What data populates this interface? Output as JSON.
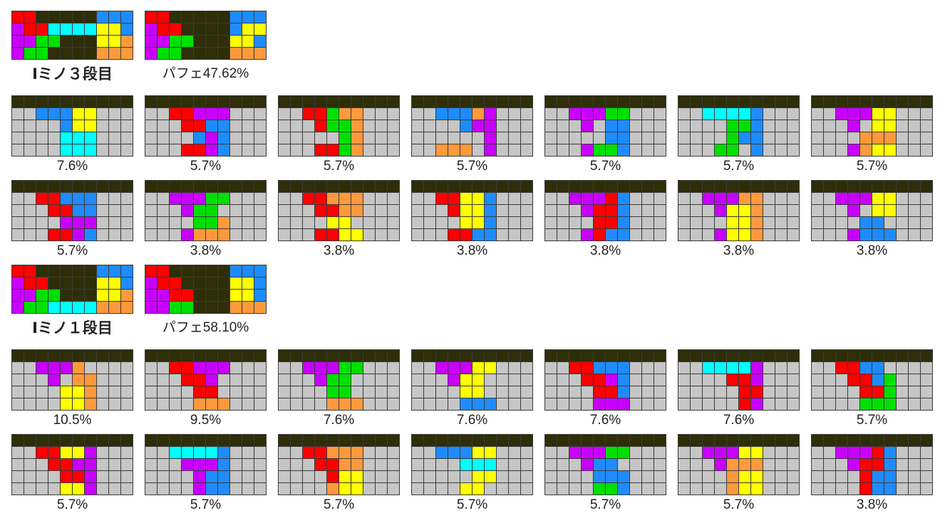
{
  "colors": {
    "D": "#2e2e08",
    "G": "#c6c6c6",
    "R": "#ff0000",
    "P": "#c800ff",
    "B": "#1e8cff",
    "Y": "#ffff00",
    "C": "#00ffff",
    "N": "#00e000",
    "O": "#ff9a3c",
    "grid": "#3a3a3a"
  },
  "sections": [
    {
      "title": "Iミノ３段目",
      "perfect": "パフェ47.62%",
      "mains": [
        [
          "RRDDDDDBBB",
          "PRRCCCCYYB",
          "PPNNDDDYYO",
          "PNNDDDDOOO"
        ],
        [
          "RRDDDDDBBB",
          "PRRDDDDBYY",
          "PPNNDDDYYB",
          "PNNDDDDOOO"
        ]
      ],
      "rows": [
        [
          {
            "label": "7.6%",
            "grid": [
              "DDDDDDDDDD",
              "GGBBBYYGGG",
              "GGGGBYYGGG",
              "GGGGCCCGGG",
              "GGGGCCCGGG"
            ]
          },
          {
            "label": "5.7%",
            "grid": [
              "DDDDDDDDDD",
              "GGRRPPPGGG",
              "GGGRRBBGGG",
              "GGGGBPBGGG",
              "GGGRRPBGGG"
            ]
          },
          {
            "label": "5.7%",
            "grid": [
              "DDDDDDDDDD",
              "GGRRNOOGGG",
              "GGGRNNOGGG",
              "GGGGGNOGGG",
              "GGGRRNOGGG"
            ]
          },
          {
            "label": "5.7%",
            "grid": [
              "DDDDDDDDDD",
              "GGBBBOPGGG",
              "GGGGBPPGGG",
              "GGGGGGPGGG",
              "GGOOOGPGGG"
            ]
          },
          {
            "label": "5.7%",
            "grid": [
              "DDDDDDDDDD",
              "GGPPPNNGGG",
              "GGGPGBBGGG",
              "GGGGGBBGGG",
              "GGGPNNBGGG"
            ]
          },
          {
            "label": "5.7%",
            "grid": [
              "DDDDDDDDDD",
              "GGCCCCBGGG",
              "GGGGNNBGGG",
              "GGGGNBBGGG",
              "GGGNNGBGGG"
            ]
          },
          {
            "label": "5.7%",
            "grid": [
              "DDDDDDDDDD",
              "GGPPPYYGGG",
              "GGGPGYYGGG",
              "GGGGOOOGGG",
              "GGGPOYYGGG"
            ]
          }
        ],
        [
          {
            "label": "5.7%",
            "grid": [
              "DDDDDDDDDD",
              "GGRRBBBGGG",
              "GGGRRBBGGG",
              "GGGGPPPGGG",
              "GGGRRPBGGG"
            ]
          },
          {
            "label": "3.8%",
            "grid": [
              "DDDDDDDDDD",
              "GGPPPNNGGG",
              "GGGPNNGGGG",
              "GGGGNNOGGG",
              "GGGPOOOGGG"
            ]
          },
          {
            "label": "3.8%",
            "grid": [
              "DDDDDDDDDD",
              "GGRROOOGGG",
              "GGGRROOGGG",
              "GGGGYYGGGG",
              "GGGRRYYGGG"
            ]
          },
          {
            "label": "3.8%",
            "grid": [
              "DDDDDDDDDD",
              "GGRRYYBGGG",
              "GGGRYYBGGG",
              "GGGGYYBGGG",
              "GGGRRBBGGG"
            ]
          },
          {
            "label": "3.8%",
            "grid": [
              "DDDDDDDDDD",
              "GGPPPRBGGG",
              "GGGPRRBGGG",
              "GGGGRRBGGG",
              "GGGPRBBGGG"
            ]
          },
          {
            "label": "3.8%",
            "grid": [
              "DDDDDDDDDD",
              "GGPPPOOGGG",
              "GGGPYYOGGG",
              "GGGGYYOGGG",
              "GGGPYYOGGG"
            ]
          },
          {
            "label": "3.8%",
            "grid": [
              "DDDDDDDDDD",
              "GGPPPYYGGG",
              "GGGPGYYGGG",
              "GGGGBBGGGG",
              "GGGPBBBGGG"
            ]
          }
        ]
      ]
    },
    {
      "title": "Iミノ１段目",
      "perfect": "パフェ58.10%",
      "mains": [
        [
          "RRDDDDDBBB",
          "PRRDDDDYYB",
          "PPNNDDDYYO",
          "PNNCCCCOOO"
        ],
        [
          "RRDDDDDBBB",
          "PRRDDDDYYB",
          "PPRRDDDYYB",
          "PPNNDDDOOO"
        ]
      ],
      "rows": [
        [
          {
            "label": "10.5%",
            "grid": [
              "DDDDDDDDDD",
              "GGPPPOGGGG",
              "GGGPGOOGGG",
              "GGGGYYOGGG",
              "GGGGYYOGGG"
            ]
          },
          {
            "label": "9.5%",
            "grid": [
              "DDDDDDDDDD",
              "GGRRPPPGGG",
              "GGGRRPGGGG",
              "GGGGRRGGGG",
              "GGGGOOOGGG"
            ]
          },
          {
            "label": "7.6%",
            "grid": [
              "DDDDDDDDDD",
              "GGPPPNNGGG",
              "GGGPNNGGGG",
              "GGGGNNGGGG",
              "GGGGOOOGGG"
            ]
          },
          {
            "label": "7.6%",
            "grid": [
              "DDDDDDDDDD",
              "GGPPPYYGGG",
              "GGGPYYGGGG",
              "GGGGYYGGGG",
              "GGGGBBBGGG"
            ]
          },
          {
            "label": "7.6%",
            "grid": [
              "DDDDDDDDDD",
              "GGRRBBBGGG",
              "GGGRRPBGGG",
              "GGGGRRBGGG",
              "GGGGPPPGGG"
            ]
          },
          {
            "label": "7.6%",
            "grid": [
              "DDDDDDDDDD",
              "GGCCCCPGGG",
              "GGGGRRPGGG",
              "GGGGGRRGGG",
              "GGGGGRPGGG"
            ]
          },
          {
            "label": "5.7%",
            "grid": [
              "DDDDDDDDDD",
              "GGRRBBGGGG",
              "GGGRRBNGGG",
              "GGGGRRNGGG",
              "GGGGNNNGGG"
            ]
          }
        ],
        [
          {
            "label": "5.7%",
            "grid": [
              "DDDDDDDDDD",
              "GGRRYYPGGG",
              "GGGRRPPGGG",
              "GGGGRRPGGG",
              "GGGGYYPGGG"
            ]
          },
          {
            "label": "5.7%",
            "grid": [
              "DDDDDDDDDD",
              "GGCCCCBGGG",
              "GGGPPPBGGG",
              "GGGGPBBGGG",
              "GGGGPBBGGG"
            ]
          },
          {
            "label": "5.7%",
            "grid": [
              "DDDDDDDDDD",
              "GGRROOOGGG",
              "GGGRROOGGG",
              "GGGGRYYGGG",
              "GGGGOYYGGG"
            ]
          },
          {
            "label": "5.7%",
            "grid": [
              "DDDDDDDDDD",
              "GGBBBYYGGG",
              "GGGGCCCGGG",
              "GGGGGYYGGG",
              "GGGGYYGGGG"
            ]
          },
          {
            "label": "5.7%",
            "grid": [
              "DDDDDDDDDD",
              "GGPPPNNGGG",
              "GGGPBBGGGG",
              "GGGGBBBGGG",
              "GGGGNNBGGG"
            ]
          },
          {
            "label": "5.7%",
            "grid": [
              "DDDDDDDDDD",
              "GGPPPYYGGG",
              "GGGPOOOGGG",
              "GGGGOYYGGG",
              "GGGGOYYGGG"
            ]
          },
          {
            "label": "3.8%",
            "grid": [
              "DDDDDDDDDD",
              "GGPPPRBGGG",
              "GGGPRRBGGG",
              "GGGGRBBGGG",
              "GGGGRBBGGG"
            ]
          }
        ]
      ]
    }
  ]
}
